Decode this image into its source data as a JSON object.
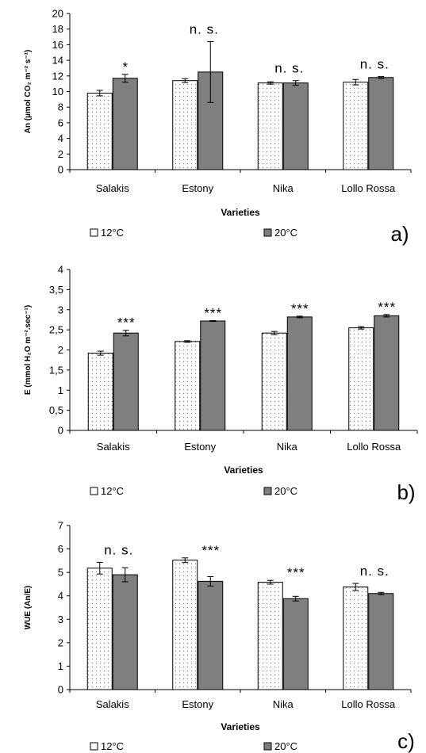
{
  "colors": {
    "bar_12": "#ffffff",
    "bar_20": "#7f7f7f",
    "dots": "#8a8a8a",
    "axis": "#000000"
  },
  "legend": {
    "label_12": "12°C",
    "label_20": "20°C"
  },
  "chart_data": [
    {
      "type": "bar",
      "panel_label": "a)",
      "categories": [
        "Salakis",
        "Estony",
        "Nika",
        "Lollo Rossa"
      ],
      "xlabel": "Varieties",
      "ylabel": "An (µmol CO₂ m⁻² s⁻¹)",
      "ylim": [
        0,
        20
      ],
      "yticks": [
        "0",
        "2",
        "4",
        "6",
        "8",
        "10",
        "12",
        "14",
        "16",
        "18",
        "20"
      ],
      "grid": false,
      "legend_position": "bottom",
      "series": [
        {
          "name": "12°C",
          "values": [
            9.8,
            11.4,
            11.1,
            11.2
          ],
          "errors": [
            0.35,
            0.25,
            0.15,
            0.35
          ]
        },
        {
          "name": "20°C",
          "values": [
            11.7,
            12.5,
            11.1,
            11.8
          ],
          "errors": [
            0.5,
            3.9,
            0.3,
            0.12
          ]
        }
      ],
      "significance": [
        "*",
        "n. s.",
        "n. s.",
        "n. s."
      ]
    },
    {
      "type": "bar",
      "panel_label": "b)",
      "categories": [
        "Salakis",
        "Estony",
        "Nika",
        "Lollo Rossa"
      ],
      "xlabel": "Varieties",
      "ylabel": "E (mmol H₂O m⁻².sec⁻¹)",
      "ylim": [
        0,
        4
      ],
      "yticks": [
        "0",
        "0,5",
        "1",
        "1,5",
        "2",
        "2,5",
        "3",
        "3,5",
        "4"
      ],
      "grid": false,
      "legend_position": "bottom",
      "series": [
        {
          "name": "12°C",
          "values": [
            1.92,
            2.21,
            2.42,
            2.55
          ],
          "errors": [
            0.05,
            0.02,
            0.04,
            0.03
          ]
        },
        {
          "name": "20°C",
          "values": [
            2.42,
            2.72,
            2.82,
            2.85
          ],
          "errors": [
            0.07,
            0.01,
            0.02,
            0.03
          ]
        }
      ],
      "significance": [
        "***",
        "***",
        "***",
        "***"
      ]
    },
    {
      "type": "bar",
      "panel_label": "c)",
      "categories": [
        "Salakis",
        "Estony",
        "Nika",
        "Lollo Rossa"
      ],
      "xlabel": "Varieties",
      "ylabel": "WUE (An/E)",
      "ylim": [
        0,
        7
      ],
      "yticks": [
        "0",
        "1",
        "2",
        "3",
        "4",
        "5",
        "6",
        "7"
      ],
      "grid": false,
      "legend_position": "bottom",
      "series": [
        {
          "name": "12°C",
          "values": [
            5.18,
            5.52,
            4.58,
            4.38
          ],
          "errors": [
            0.25,
            0.1,
            0.08,
            0.15
          ]
        },
        {
          "name": "20°C",
          "values": [
            4.9,
            4.62,
            3.88,
            4.1
          ],
          "errors": [
            0.3,
            0.2,
            0.1,
            0.05
          ]
        }
      ],
      "significance": [
        "n. s.",
        "***",
        "***",
        "n. s."
      ]
    }
  ]
}
